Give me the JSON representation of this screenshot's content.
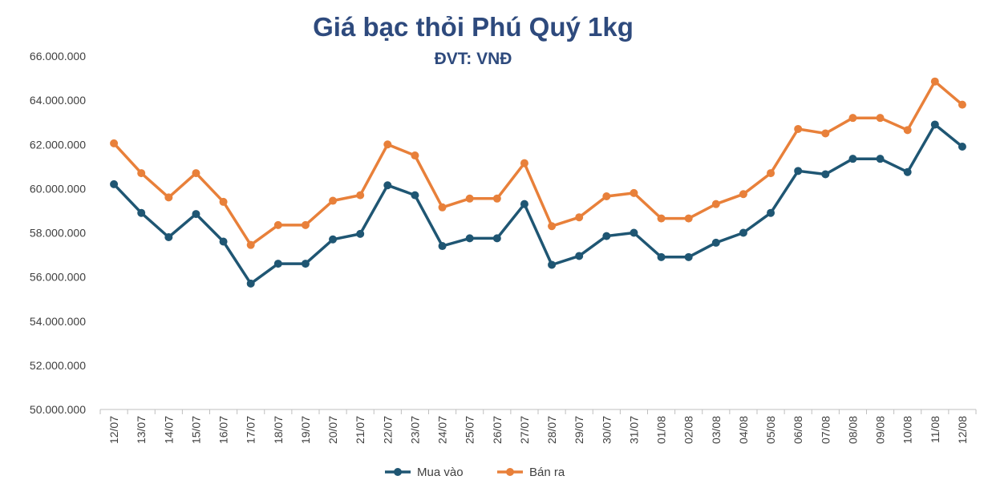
{
  "colors": {
    "title": "#2E4A7D",
    "buy": "#1F5673",
    "sell": "#E8803A",
    "axis": "#BFBFBF"
  },
  "chart_data": {
    "type": "line",
    "title": "Giá bạc thỏi Phú Quý 1kg",
    "subtitle": "ĐVT: VNĐ",
    "categories": [
      "12/07",
      "13/07",
      "14/07",
      "15/07",
      "16/07",
      "17/07",
      "18/07",
      "19/07",
      "20/07",
      "21/07",
      "22/07",
      "23/07",
      "24/07",
      "25/07",
      "26/07",
      "27/07",
      "28/07",
      "29/07",
      "30/07",
      "31/07",
      "01/08",
      "02/08",
      "03/08",
      "04/08",
      "05/08",
      "06/08",
      "07/08",
      "08/08",
      "09/08",
      "10/08",
      "11/08",
      "12/08"
    ],
    "yticks": [
      "50.000.000",
      "52.000.000",
      "54.000.000",
      "56.000.000",
      "58.000.000",
      "60.000.000",
      "62.000.000",
      "64.000.000",
      "66.000.000"
    ],
    "ylim": [
      50000000,
      66000000
    ],
    "grid": false,
    "legend": "bottom",
    "series": [
      {
        "name": "Mua vào",
        "values": [
          60200000,
          58900000,
          57800000,
          58850000,
          57600000,
          55700000,
          56600000,
          56600000,
          57700000,
          57950000,
          60150000,
          59700000,
          57400000,
          57750000,
          57750000,
          59300000,
          56550000,
          56950000,
          57850000,
          58000000,
          56900000,
          56900000,
          57550000,
          58000000,
          58900000,
          60800000,
          60650000,
          61350000,
          61350000,
          60750000,
          62900000,
          61900000
        ]
      },
      {
        "name": "Bán ra",
        "values": [
          62050000,
          60700000,
          59600000,
          60700000,
          59400000,
          57450000,
          58350000,
          58350000,
          59450000,
          59700000,
          62000000,
          61500000,
          59150000,
          59550000,
          59550000,
          61150000,
          58300000,
          58700000,
          59650000,
          59800000,
          58650000,
          58650000,
          59300000,
          59750000,
          60700000,
          62700000,
          62500000,
          63200000,
          63200000,
          62650000,
          64850000,
          63800000
        ]
      }
    ]
  }
}
